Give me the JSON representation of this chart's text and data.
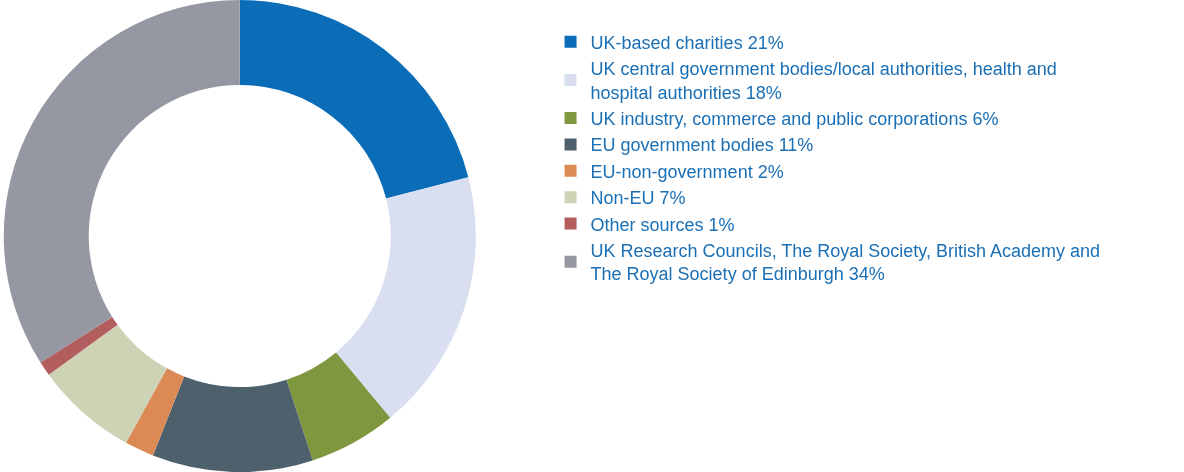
{
  "chart_data": {
    "type": "donut",
    "categories": [
      "UK-based charities 21%",
      "UK central government bodies/local authorities, health and hospital authorities 18%",
      "UK industry, commerce and public corporations 6%",
      "EU government bodies 11%",
      "EU-non-government 2%",
      "Non-EU 7%",
      "Other sources 1%",
      "UK Research Councils, The Royal Society, British Academy and The Royal Society of Edinburgh 34%"
    ],
    "values": [
      21,
      18,
      6,
      11,
      2,
      7,
      1,
      34
    ],
    "colors": [
      "#0b6db7",
      "#d9dff0",
      "#7f973f",
      "#4f606d",
      "#dc8a55",
      "#cfd3b5",
      "#b35e5e",
      "#9598a2"
    ],
    "legend": "right"
  }
}
